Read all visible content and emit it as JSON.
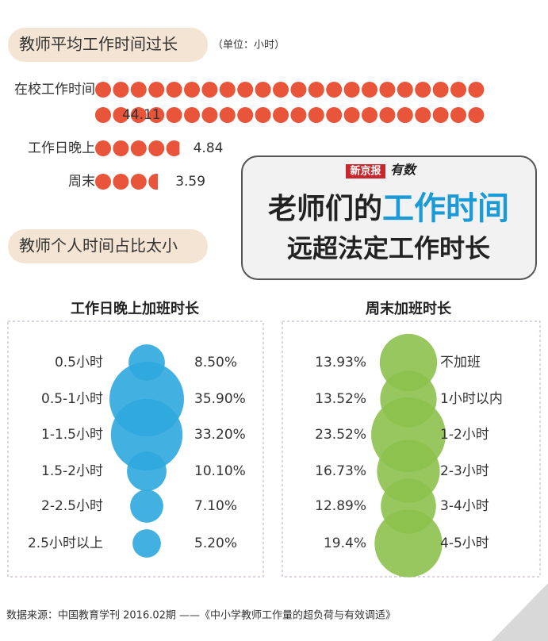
{
  "section1": {
    "title": "教师平均工作时间过长",
    "unit": "（单位：小时）"
  },
  "section2": {
    "title": "教师个人时间占比太小"
  },
  "badge": {
    "logo": "新京报",
    "logo2": "有数",
    "line1a": "老师们的",
    "line1b": "工作时间",
    "line2": "远超法定工作时长"
  },
  "chart_data": [
    {
      "type": "dots",
      "categories": [
        "在校工作时间",
        "工作日晚上",
        "周末"
      ],
      "values": [
        44.11,
        4.84,
        3.59
      ],
      "color": "#e8553b"
    },
    {
      "type": "bubble",
      "title": "工作日晚上加班时长",
      "categories": [
        "0.5小时",
        "0.5-1小时",
        "1-1.5小时",
        "1.5-2小时",
        "2-2.5小时",
        "2.5小时以上"
      ],
      "values": [
        8.5,
        35.9,
        33.2,
        10.1,
        7.1,
        5.2
      ],
      "value_labels": [
        "8.50%",
        "35.90%",
        "33.20%",
        "10.10%",
        "7.10%",
        "5.20%"
      ],
      "color": "#2ea8de"
    },
    {
      "type": "bubble",
      "title": "周末加班时长",
      "categories": [
        "不加班",
        "1小时以内",
        "1-2小时",
        "2-3小时",
        "3-4小时",
        "4-5小时"
      ],
      "values": [
        13.93,
        13.52,
        23.52,
        16.73,
        12.89,
        19.4
      ],
      "value_labels": [
        "13.93%",
        "13.52%",
        "23.52%",
        "16.73%",
        "12.89%",
        "19.4%"
      ],
      "color": "#8cc14c"
    }
  ],
  "source": "数据来源：中国教育学刊 2016.02期 ——《中小学教师工作量的超负荷与有效调适》"
}
